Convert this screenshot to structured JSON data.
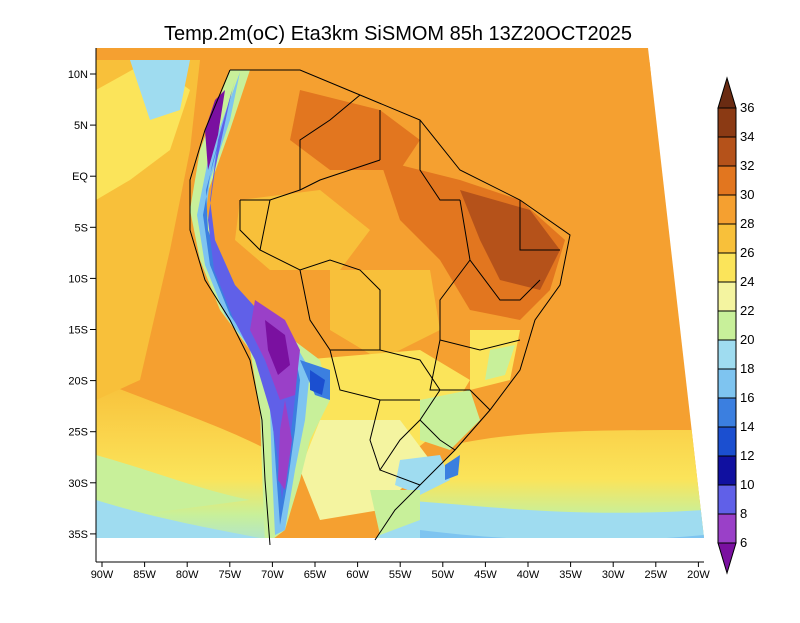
{
  "title": "Temp.2m(oC) Eta3km SiSMOM 85h 13Z20OCT2025",
  "axes": {
    "lat_labels": [
      "10N",
      "5N",
      "EQ",
      "5S",
      "10S",
      "15S",
      "20S",
      "25S",
      "30S",
      "35S"
    ],
    "lon_labels": [
      "90W",
      "85W",
      "80W",
      "75W",
      "70W",
      "65W",
      "60W",
      "55W",
      "50W",
      "45W",
      "40W",
      "35W",
      "30W",
      "25W",
      "20W"
    ]
  },
  "colorbar": {
    "labels": [
      "36",
      "34",
      "32",
      "30",
      "28",
      "26",
      "24",
      "22",
      "20",
      "18",
      "16",
      "14",
      "12",
      "10",
      "8",
      "6"
    ],
    "colors": [
      "#6a2b12",
      "#8b3a14",
      "#b5521a",
      "#e2761f",
      "#f5a030",
      "#f8c03a",
      "#fbe45a",
      "#f4f4a0",
      "#c8f09a",
      "#9fdcf0",
      "#7ec4f0",
      "#3b7fe0",
      "#1b4fd0",
      "#1010a0",
      "#6060e8",
      "#9a40c8",
      "#7a10a0"
    ]
  }
}
